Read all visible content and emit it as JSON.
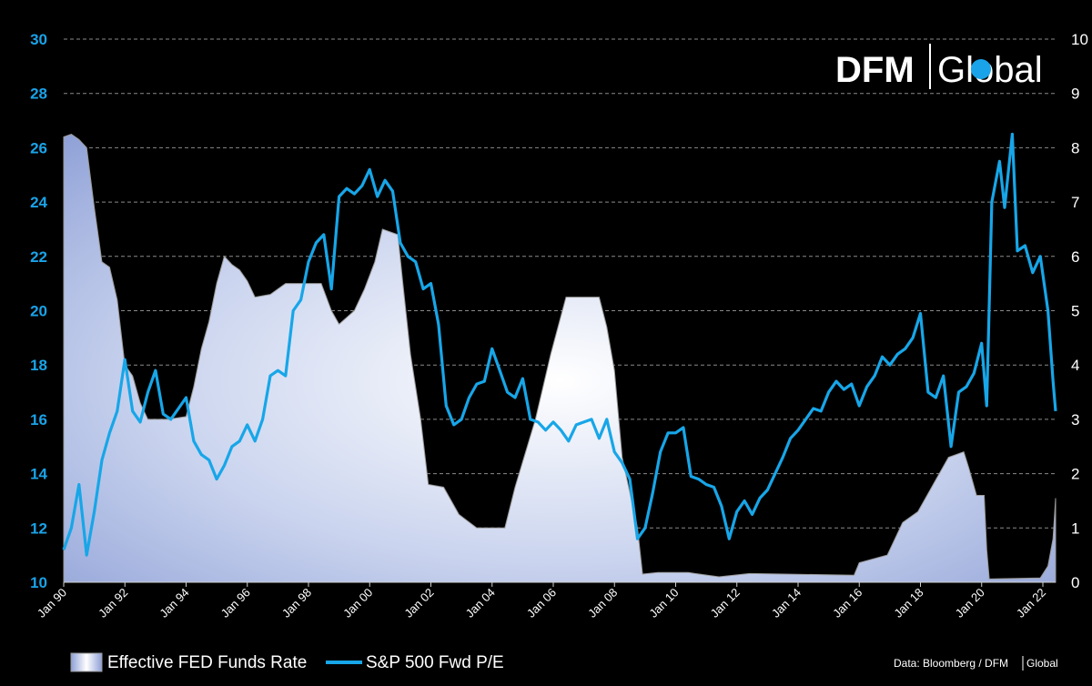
{
  "chart_data": {
    "type": "area",
    "title": "",
    "xlabel": "",
    "ylabel": "",
    "x_start": "1990-01",
    "x_end": "2022-06",
    "x_ticks": [
      "Jan 90",
      "Jan 92",
      "Jan 94",
      "Jan 96",
      "Jan 98",
      "Jan 00",
      "Jan 02",
      "Jan 04",
      "Jan 06",
      "Jan 08",
      "Jan 10",
      "Jan 12",
      "Jan 14",
      "Jan 16",
      "Jan 18",
      "Jan 20",
      "Jan 22"
    ],
    "ylim_left": [
      10,
      30
    ],
    "yticks_left": [
      "10",
      "12",
      "14",
      "16",
      "18",
      "20",
      "22",
      "24",
      "26",
      "28",
      "30"
    ],
    "ylim_right": [
      0,
      10
    ],
    "yticks_right": [
      "0",
      "1",
      "2",
      "3",
      "4",
      "5",
      "6",
      "7",
      "8",
      "9",
      "10"
    ],
    "grid": true,
    "legend_position": "bottom-left",
    "series": [
      {
        "name": "Effective FED Funds Rate",
        "type": "area",
        "axis": "right",
        "color": "#dfe5f6",
        "points": [
          [
            "1990-01",
            8.2
          ],
          [
            "1990-04",
            8.25
          ],
          [
            "1990-07",
            8.15
          ],
          [
            "1990-10",
            8.0
          ],
          [
            "1991-01",
            6.9
          ],
          [
            "1991-04",
            5.9
          ],
          [
            "1991-07",
            5.8
          ],
          [
            "1991-10",
            5.2
          ],
          [
            "1992-01",
            4.0
          ],
          [
            "1992-04",
            3.8
          ],
          [
            "1992-07",
            3.3
          ],
          [
            "1992-10",
            3.0
          ],
          [
            "1993-06",
            3.0
          ],
          [
            "1994-01",
            3.05
          ],
          [
            "1994-04",
            3.6
          ],
          [
            "1994-07",
            4.3
          ],
          [
            "1994-10",
            4.8
          ],
          [
            "1995-01",
            5.5
          ],
          [
            "1995-04",
            6.0
          ],
          [
            "1995-07",
            5.85
          ],
          [
            "1995-10",
            5.75
          ],
          [
            "1996-01",
            5.55
          ],
          [
            "1996-04",
            5.25
          ],
          [
            "1996-10",
            5.3
          ],
          [
            "1997-04",
            5.5
          ],
          [
            "1998-06",
            5.5
          ],
          [
            "1998-10",
            5.0
          ],
          [
            "1999-01",
            4.75
          ],
          [
            "1999-07",
            5.0
          ],
          [
            "1999-11",
            5.4
          ],
          [
            "2000-03",
            5.9
          ],
          [
            "2000-06",
            6.5
          ],
          [
            "2000-12",
            6.4
          ],
          [
            "2001-02",
            5.5
          ],
          [
            "2001-05",
            4.2
          ],
          [
            "2001-09",
            3.0
          ],
          [
            "2001-12",
            1.8
          ],
          [
            "2002-06",
            1.75
          ],
          [
            "2002-12",
            1.25
          ],
          [
            "2003-07",
            1.0
          ],
          [
            "2004-06",
            1.0
          ],
          [
            "2004-10",
            1.75
          ],
          [
            "2005-06",
            3.0
          ],
          [
            "2005-12",
            4.2
          ],
          [
            "2006-06",
            5.25
          ],
          [
            "2007-07",
            5.25
          ],
          [
            "2007-10",
            4.7
          ],
          [
            "2008-01",
            3.9
          ],
          [
            "2008-04",
            2.3
          ],
          [
            "2008-10",
            1.0
          ],
          [
            "2008-12",
            0.15
          ],
          [
            "2009-06",
            0.18
          ],
          [
            "2010-06",
            0.18
          ],
          [
            "2011-06",
            0.1
          ],
          [
            "2012-06",
            0.16
          ],
          [
            "2015-11",
            0.13
          ],
          [
            "2016-01",
            0.36
          ],
          [
            "2016-12",
            0.5
          ],
          [
            "2017-06",
            1.1
          ],
          [
            "2017-12",
            1.3
          ],
          [
            "2018-06",
            1.8
          ],
          [
            "2018-12",
            2.3
          ],
          [
            "2019-06",
            2.4
          ],
          [
            "2019-08",
            2.1
          ],
          [
            "2019-11",
            1.6
          ],
          [
            "2020-02",
            1.6
          ],
          [
            "2020-03",
            0.6
          ],
          [
            "2020-04",
            0.06
          ],
          [
            "2021-12",
            0.08
          ],
          [
            "2022-03",
            0.3
          ],
          [
            "2022-05",
            0.8
          ],
          [
            "2022-06",
            1.55
          ]
        ]
      },
      {
        "name": "S&P 500 Fwd P/E",
        "type": "line",
        "axis": "left",
        "color": "#17a6e8",
        "points": [
          [
            "1990-01",
            11.2
          ],
          [
            "1990-04",
            12.0
          ],
          [
            "1990-07",
            13.6
          ],
          [
            "1990-10",
            11.0
          ],
          [
            "1991-01",
            12.6
          ],
          [
            "1991-04",
            14.5
          ],
          [
            "1991-07",
            15.5
          ],
          [
            "1991-10",
            16.3
          ],
          [
            "1992-01",
            18.2
          ],
          [
            "1992-04",
            16.3
          ],
          [
            "1992-07",
            15.9
          ],
          [
            "1992-10",
            17.0
          ],
          [
            "1993-01",
            17.8
          ],
          [
            "1993-04",
            16.2
          ],
          [
            "1993-07",
            16.0
          ],
          [
            "1993-10",
            16.4
          ],
          [
            "1994-01",
            16.8
          ],
          [
            "1994-04",
            15.2
          ],
          [
            "1994-07",
            14.7
          ],
          [
            "1994-10",
            14.5
          ],
          [
            "1995-01",
            13.8
          ],
          [
            "1995-04",
            14.3
          ],
          [
            "1995-07",
            15.0
          ],
          [
            "1995-10",
            15.2
          ],
          [
            "1996-01",
            15.8
          ],
          [
            "1996-04",
            15.2
          ],
          [
            "1996-07",
            16.0
          ],
          [
            "1996-10",
            17.6
          ],
          [
            "1997-01",
            17.8
          ],
          [
            "1997-04",
            17.6
          ],
          [
            "1997-07",
            20.0
          ],
          [
            "1997-10",
            20.4
          ],
          [
            "1998-01",
            21.8
          ],
          [
            "1998-04",
            22.5
          ],
          [
            "1998-07",
            22.8
          ],
          [
            "1998-10",
            20.8
          ],
          [
            "1999-01",
            24.2
          ],
          [
            "1999-04",
            24.5
          ],
          [
            "1999-07",
            24.3
          ],
          [
            "1999-10",
            24.6
          ],
          [
            "2000-01",
            25.2
          ],
          [
            "2000-04",
            24.2
          ],
          [
            "2000-07",
            24.8
          ],
          [
            "2000-10",
            24.4
          ],
          [
            "2001-01",
            22.5
          ],
          [
            "2001-04",
            22.0
          ],
          [
            "2001-07",
            21.8
          ],
          [
            "2001-10",
            20.8
          ],
          [
            "2002-01",
            21.0
          ],
          [
            "2002-04",
            19.5
          ],
          [
            "2002-07",
            16.5
          ],
          [
            "2002-10",
            15.8
          ],
          [
            "2003-01",
            16.0
          ],
          [
            "2003-04",
            16.8
          ],
          [
            "2003-07",
            17.3
          ],
          [
            "2003-10",
            17.4
          ],
          [
            "2004-01",
            18.6
          ],
          [
            "2004-04",
            17.8
          ],
          [
            "2004-07",
            17.0
          ],
          [
            "2004-10",
            16.8
          ],
          [
            "2005-01",
            17.5
          ],
          [
            "2005-04",
            16.0
          ],
          [
            "2005-07",
            15.9
          ],
          [
            "2005-10",
            15.6
          ],
          [
            "2006-01",
            15.9
          ],
          [
            "2006-04",
            15.6
          ],
          [
            "2006-07",
            15.2
          ],
          [
            "2006-10",
            15.8
          ],
          [
            "2007-01",
            15.9
          ],
          [
            "2007-04",
            16.0
          ],
          [
            "2007-07",
            15.3
          ],
          [
            "2007-10",
            16.0
          ],
          [
            "2008-01",
            14.8
          ],
          [
            "2008-04",
            14.4
          ],
          [
            "2008-07",
            13.8
          ],
          [
            "2008-10",
            11.6
          ],
          [
            "2009-01",
            12.0
          ],
          [
            "2009-04",
            13.3
          ],
          [
            "2009-07",
            14.8
          ],
          [
            "2009-10",
            15.5
          ],
          [
            "2010-01",
            15.5
          ],
          [
            "2010-04",
            15.7
          ],
          [
            "2010-07",
            13.9
          ],
          [
            "2010-10",
            13.8
          ],
          [
            "2011-01",
            13.6
          ],
          [
            "2011-04",
            13.5
          ],
          [
            "2011-07",
            12.8
          ],
          [
            "2011-10",
            11.6
          ],
          [
            "2012-01",
            12.6
          ],
          [
            "2012-04",
            13.0
          ],
          [
            "2012-07",
            12.5
          ],
          [
            "2012-10",
            13.1
          ],
          [
            "2013-01",
            13.4
          ],
          [
            "2013-04",
            14.0
          ],
          [
            "2013-07",
            14.6
          ],
          [
            "2013-10",
            15.3
          ],
          [
            "2014-01",
            15.6
          ],
          [
            "2014-04",
            16.0
          ],
          [
            "2014-07",
            16.4
          ],
          [
            "2014-10",
            16.3
          ],
          [
            "2015-01",
            17.0
          ],
          [
            "2015-04",
            17.4
          ],
          [
            "2015-07",
            17.1
          ],
          [
            "2015-10",
            17.3
          ],
          [
            "2016-01",
            16.5
          ],
          [
            "2016-04",
            17.2
          ],
          [
            "2016-07",
            17.6
          ],
          [
            "2016-10",
            18.3
          ],
          [
            "2017-01",
            18.0
          ],
          [
            "2017-04",
            18.4
          ],
          [
            "2017-07",
            18.6
          ],
          [
            "2017-10",
            19.0
          ],
          [
            "2018-01",
            19.9
          ],
          [
            "2018-04",
            17.0
          ],
          [
            "2018-07",
            16.8
          ],
          [
            "2018-10",
            17.6
          ],
          [
            "2019-01",
            15.0
          ],
          [
            "2019-04",
            17.0
          ],
          [
            "2019-07",
            17.2
          ],
          [
            "2019-10",
            17.7
          ],
          [
            "2020-01",
            18.8
          ],
          [
            "2020-03",
            16.5
          ],
          [
            "2020-05",
            24.0
          ],
          [
            "2020-08",
            25.5
          ],
          [
            "2020-10",
            23.8
          ],
          [
            "2021-01",
            26.5
          ],
          [
            "2021-03",
            22.2
          ],
          [
            "2021-06",
            22.4
          ],
          [
            "2021-09",
            21.4
          ],
          [
            "2021-12",
            22.0
          ],
          [
            "2022-03",
            20.0
          ],
          [
            "2022-05",
            17.4
          ],
          [
            "2022-06",
            16.3
          ]
        ]
      }
    ]
  },
  "legend": {
    "area_label": "Effective FED Funds Rate",
    "line_label": "S&P 500 Fwd P/E"
  },
  "logo": {
    "text_left": "DFM",
    "text_right": "Global"
  },
  "source": {
    "prefix": "Data: Bloomberg / DFM",
    "suffix": "Global"
  },
  "colors": {
    "background": "#000000",
    "line": "#17a6e8",
    "area_fill": "#dfe5f6",
    "left_axis_text": "#1aa3e8"
  }
}
